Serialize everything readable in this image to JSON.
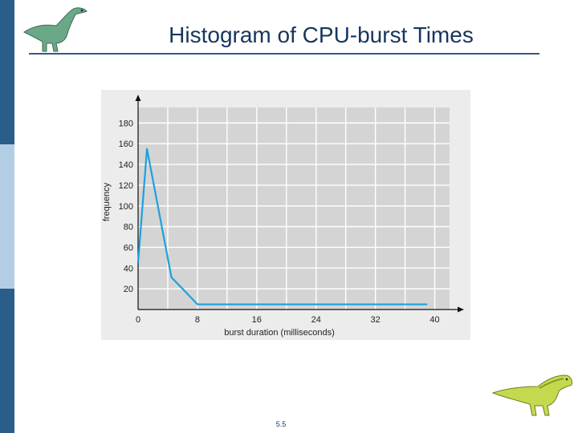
{
  "slide": {
    "title": "Histogram of CPU-burst Times",
    "page_number": "5.5"
  },
  "icons": {
    "top_left": "dinosaur-icon",
    "bottom_right": "dinosaur-icon"
  },
  "colors": {
    "series_line": "#1ea0de",
    "plot_background": "#d4d4d4",
    "title_text": "#17365d",
    "accent_bar": "#2b5d8a"
  },
  "chart_data": {
    "type": "line",
    "xlabel": "burst duration (milliseconds)",
    "ylabel": "frequency",
    "x_ticks": [
      0,
      8,
      16,
      24,
      32,
      40
    ],
    "y_ticks": [
      20,
      40,
      60,
      80,
      100,
      120,
      140,
      160,
      180
    ],
    "xlim": [
      0,
      42
    ],
    "ylim": [
      0,
      195
    ],
    "grid": true,
    "series": [
      {
        "x": [
          0,
          1.2,
          2,
          4.5,
          6,
          8,
          16,
          24,
          32,
          39
        ],
        "y": [
          45,
          155,
          125,
          31,
          20,
          5,
          5,
          5,
          5,
          5
        ]
      }
    ]
  }
}
